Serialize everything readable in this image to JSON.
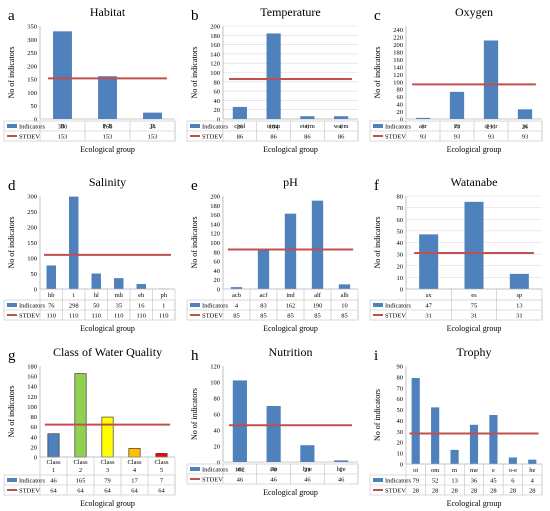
{
  "figure": {
    "legend_labels": [
      "Indicators",
      "STDEV"
    ],
    "xlabel": "Ecological group",
    "ylabel": "No of indicators"
  },
  "colors": {
    "bar": "#4f81bd",
    "stdev": "#c0504d",
    "grid": "#d9d9d9",
    "table_border": "#bfbfbf",
    "text": "#000000"
  },
  "chart_data": [
    {
      "letter": "a",
      "type": "bar",
      "title": "Habitat",
      "categories": [
        "B",
        "P-B",
        "P"
      ],
      "series": [
        {
          "name": "Indicators",
          "values": [
            330,
            161,
            24
          ]
        },
        {
          "name": "STDEV",
          "values": [
            153,
            153,
            153
          ]
        }
      ],
      "ylim": [
        0,
        350
      ],
      "yticks": [
        0,
        50,
        100,
        150,
        200,
        250,
        300,
        350
      ],
      "grid": false,
      "cat_in_table": false
    },
    {
      "letter": "b",
      "type": "bar",
      "title": "Temperature",
      "categories": [
        "cool",
        "temp",
        "eterm",
        "warm"
      ],
      "series": [
        {
          "name": "Indicators",
          "values": [
            26,
            184,
            6,
            6
          ]
        },
        {
          "name": "STDEV",
          "values": [
            86,
            86,
            86,
            86
          ]
        }
      ],
      "ylim": [
        0,
        200
      ],
      "yticks": [
        0,
        20,
        40,
        60,
        80,
        100,
        120,
        140,
        160,
        180,
        200
      ],
      "grid": true,
      "cat_in_table": false
    },
    {
      "letter": "c",
      "type": "bar",
      "title": "Oxygen",
      "categories": [
        "aer",
        "str",
        "st-str",
        "st"
      ],
      "series": [
        {
          "name": "Indicators",
          "values": [
            3,
            73,
            211,
            26
          ]
        },
        {
          "name": "STDEV",
          "values": [
            93,
            93,
            93,
            93
          ]
        }
      ],
      "ylim": [
        0,
        250
      ],
      "yticks": [
        0,
        20,
        40,
        60,
        80,
        100,
        120,
        140,
        160,
        180,
        200,
        220,
        240
      ],
      "grid": false,
      "cat_in_table": false
    },
    {
      "letter": "d",
      "type": "bar",
      "title": "Salinity",
      "categories": [
        "hb",
        "i",
        "hl",
        "mh",
        "eh",
        "ph"
      ],
      "series": [
        {
          "name": "Indicators",
          "values": [
            76,
            298,
            50,
            35,
            16,
            1
          ]
        },
        {
          "name": "STDEV",
          "values": [
            110,
            110,
            110,
            110,
            110,
            110
          ]
        }
      ],
      "ylim": [
        0,
        300
      ],
      "yticks": [
        0,
        50,
        100,
        150,
        200,
        250,
        300
      ],
      "grid": false,
      "cat_in_table": true
    },
    {
      "letter": "e",
      "type": "bar",
      "title": "pH",
      "categories": [
        "acb",
        "acf",
        "ind",
        "alf",
        "alb"
      ],
      "series": [
        {
          "name": "Indicators",
          "values": [
            4,
            83,
            162,
            190,
            10
          ]
        },
        {
          "name": "STDEV",
          "values": [
            85,
            85,
            85,
            85,
            85
          ]
        }
      ],
      "ylim": [
        0,
        200
      ],
      "yticks": [
        0,
        20,
        40,
        60,
        80,
        100,
        120,
        140,
        160,
        180,
        200
      ],
      "grid": false,
      "cat_in_table": true
    },
    {
      "letter": "f",
      "type": "bar",
      "title": "Watanabe",
      "categories": [
        "sx",
        "es",
        "sp"
      ],
      "series": [
        {
          "name": "Indicators",
          "values": [
            47,
            75,
            13
          ]
        },
        {
          "name": "STDEV",
          "values": [
            31,
            31,
            31
          ]
        }
      ],
      "ylim": [
        0,
        80
      ],
      "yticks": [
        0,
        10,
        20,
        30,
        40,
        50,
        60,
        70,
        80
      ],
      "grid": true,
      "cat_in_table": true
    },
    {
      "letter": "g",
      "type": "bar",
      "title": "Class of Water Quality",
      "categories": [
        "Class 1",
        "Class 2",
        "Class 3",
        "Class 4",
        "Class 5"
      ],
      "bar_colors": [
        "#4f81bd",
        "#92d050",
        "#ffff00",
        "#ffc000",
        "#ff0000"
      ],
      "series": [
        {
          "name": "Indicators",
          "values": [
            46,
            165,
            79,
            17,
            7
          ]
        },
        {
          "name": "STDEV",
          "values": [
            64,
            64,
            64,
            64,
            64
          ]
        }
      ],
      "ylim": [
        0,
        180
      ],
      "yticks": [
        0,
        20,
        40,
        60,
        80,
        100,
        120,
        140,
        160,
        180
      ],
      "grid": false,
      "cat_in_table": true
    },
    {
      "letter": "h",
      "type": "bar",
      "title": "Nutrition",
      "categories": [
        "ats",
        "ate",
        "hne",
        "hce"
      ],
      "series": [
        {
          "name": "Indicators",
          "values": [
            102,
            70,
            21,
            2
          ]
        },
        {
          "name": "STDEV",
          "values": [
            46,
            46,
            46,
            46
          ]
        }
      ],
      "ylim": [
        0,
        120
      ],
      "yticks": [
        0,
        20,
        40,
        60,
        80,
        100,
        120
      ],
      "grid": false,
      "cat_in_table": false
    },
    {
      "letter": "i",
      "type": "bar",
      "title": "Trophy",
      "categories": [
        "ot",
        "om",
        "m",
        "me",
        "e",
        "o-e",
        "he"
      ],
      "series": [
        {
          "name": "Indicators",
          "values": [
            79,
            52,
            13,
            36,
            45,
            6,
            4
          ]
        },
        {
          "name": "STDEV",
          "values": [
            28,
            28,
            28,
            28,
            28,
            28,
            28
          ]
        }
      ],
      "ylim": [
        0,
        90
      ],
      "yticks": [
        0,
        10,
        20,
        30,
        40,
        50,
        60,
        70,
        80,
        90
      ],
      "grid": false,
      "cat_in_table": true
    }
  ]
}
